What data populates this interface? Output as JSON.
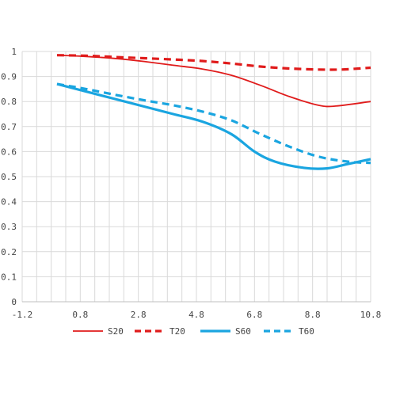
{
  "chart_data": {
    "type": "line",
    "xlim": [
      -1.2,
      10.8
    ],
    "ylim": [
      0,
      1
    ],
    "x_ticks": [
      "-1.2",
      "0.8",
      "2.8",
      "4.8",
      "6.8",
      "8.8",
      "10.8"
    ],
    "y_ticks": [
      "0",
      "0.1",
      "0.2",
      "0.3",
      "0.4",
      "0.5",
      "0.6",
      "0.7",
      "0.8",
      "0.9",
      "1"
    ],
    "grid": true,
    "legend_position": "bottom",
    "series": [
      {
        "name": "S20",
        "color": "#e01b1b",
        "style": "solid-thin",
        "points": [
          [
            0,
            0.985
          ],
          [
            1,
            0.98
          ],
          [
            2,
            0.972
          ],
          [
            3,
            0.96
          ],
          [
            4,
            0.945
          ],
          [
            5,
            0.93
          ],
          [
            6,
            0.905
          ],
          [
            7,
            0.865
          ],
          [
            8,
            0.82
          ],
          [
            9,
            0.785
          ],
          [
            9.6,
            0.782
          ],
          [
            10.8,
            0.8
          ]
        ]
      },
      {
        "name": "T20",
        "color": "#e01b1b",
        "style": "dashed-thick",
        "points": [
          [
            0,
            0.985
          ],
          [
            1,
            0.983
          ],
          [
            2,
            0.978
          ],
          [
            3,
            0.973
          ],
          [
            4,
            0.968
          ],
          [
            5,
            0.962
          ],
          [
            6,
            0.952
          ],
          [
            7,
            0.94
          ],
          [
            8,
            0.932
          ],
          [
            9,
            0.928
          ],
          [
            9.8,
            0.928
          ],
          [
            10.8,
            0.935
          ]
        ]
      },
      {
        "name": "S60",
        "color": "#1aa5e0",
        "style": "solid-thick",
        "points": [
          [
            0,
            0.87
          ],
          [
            1,
            0.84
          ],
          [
            2,
            0.81
          ],
          [
            3,
            0.78
          ],
          [
            4,
            0.75
          ],
          [
            5,
            0.72
          ],
          [
            6,
            0.67
          ],
          [
            6.8,
            0.6
          ],
          [
            7.5,
            0.56
          ],
          [
            8.5,
            0.535
          ],
          [
            9.3,
            0.533
          ],
          [
            10,
            0.55
          ],
          [
            10.8,
            0.57
          ]
        ]
      },
      {
        "name": "T60",
        "color": "#1aa5e0",
        "style": "dashed-thick",
        "points": [
          [
            0,
            0.87
          ],
          [
            1,
            0.85
          ],
          [
            2,
            0.827
          ],
          [
            3,
            0.805
          ],
          [
            4,
            0.785
          ],
          [
            5,
            0.76
          ],
          [
            6,
            0.725
          ],
          [
            7,
            0.67
          ],
          [
            8,
            0.62
          ],
          [
            9,
            0.58
          ],
          [
            10,
            0.56
          ],
          [
            10.8,
            0.555
          ]
        ]
      }
    ]
  }
}
